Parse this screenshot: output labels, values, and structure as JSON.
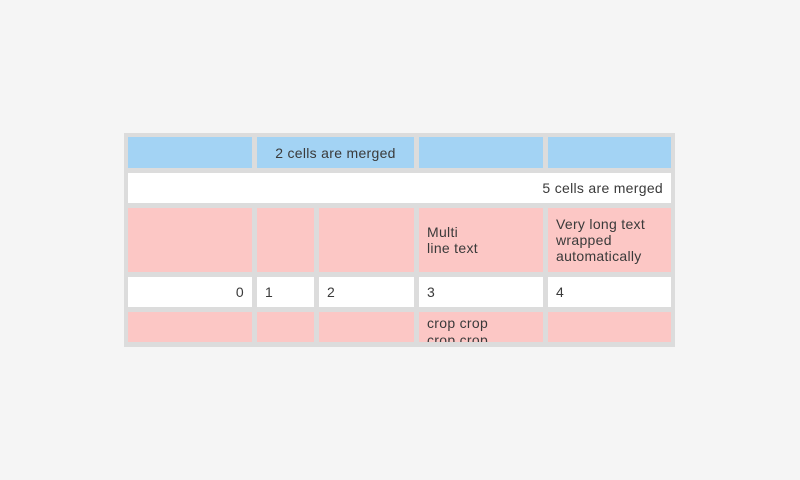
{
  "colors": {
    "page_bg": "#f5f5f5",
    "table_grid": "#dcdcdc",
    "header_cell_bg": "#a3d3f4",
    "highlight_cell_bg": "#fcc7c5",
    "cell_bg": "#ffffff",
    "text": "#3a3a3a"
  },
  "table": {
    "row1": {
      "merged_label": "2 cells are merged"
    },
    "row2": {
      "merged_label": "5 cells are merged"
    },
    "row3": {
      "multiline_label": "Multi\nline text",
      "wrapped_label": "Very long text wrapped automatically"
    },
    "row4": {
      "cells": [
        "0",
        "1",
        "2",
        "3",
        "4"
      ]
    },
    "row5": {
      "crop_label": "crop crop crop crop"
    }
  }
}
